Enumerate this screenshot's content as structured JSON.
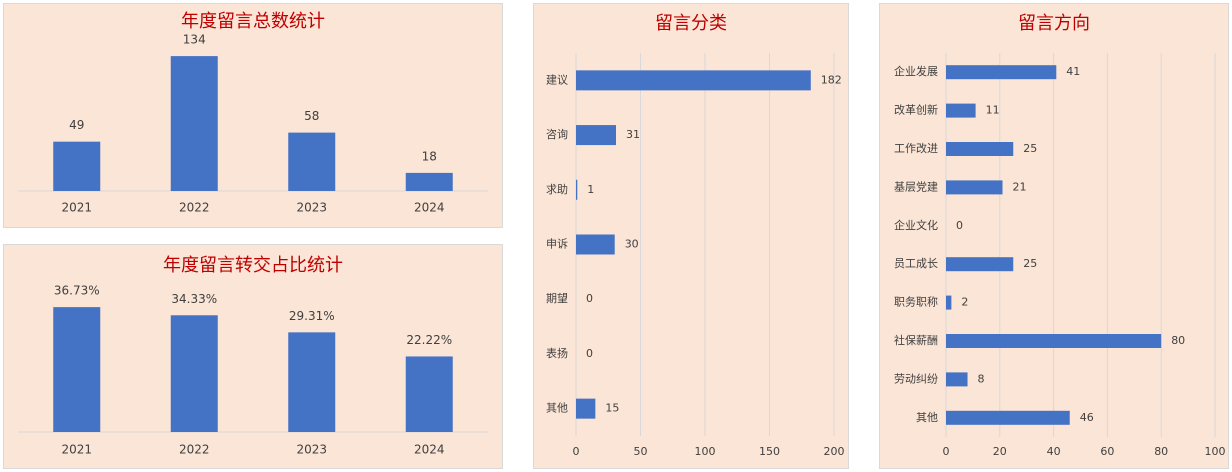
{
  "chart_data": [
    {
      "type": "bar",
      "title": "年度留言总数统计",
      "categories": [
        "2021",
        "2022",
        "2023",
        "2024"
      ],
      "values": [
        49,
        134,
        58,
        18
      ],
      "color": "#4472c4",
      "ylim": [
        0,
        150
      ]
    },
    {
      "type": "bar",
      "title": "年度留言转交占比统计",
      "categories": [
        "2021",
        "2022",
        "2023",
        "2024"
      ],
      "values": [
        36.73,
        34.33,
        29.31,
        22.22
      ],
      "value_labels": [
        "36.73%",
        "34.33%",
        "29.31%",
        "22.22%"
      ],
      "color": "#4472c4",
      "ylim": [
        0,
        40
      ]
    },
    {
      "type": "barh",
      "title": "留言分类",
      "categories": [
        "建议",
        "咨询",
        "求助",
        "申诉",
        "期望",
        "表扬",
        "其他"
      ],
      "values": [
        182,
        31,
        1,
        30,
        0,
        0,
        15
      ],
      "color": "#4472c4",
      "xlim": [
        0,
        200
      ],
      "xticks": [
        0,
        50,
        100,
        150,
        200
      ],
      "grid": true
    },
    {
      "type": "barh",
      "title": "留言方向",
      "categories": [
        "企业发展",
        "改革创新",
        "工作改进",
        "基层党建",
        "企业文化",
        "员工成长",
        "职务职称",
        "社保薪酬",
        "劳动纠纷",
        "其他"
      ],
      "values": [
        41,
        11,
        25,
        21,
        0,
        25,
        2,
        80,
        8,
        46
      ],
      "color": "#4472c4",
      "xlim": [
        0,
        100
      ],
      "xticks": [
        0,
        20,
        40,
        60,
        80,
        100
      ],
      "grid": true
    }
  ]
}
